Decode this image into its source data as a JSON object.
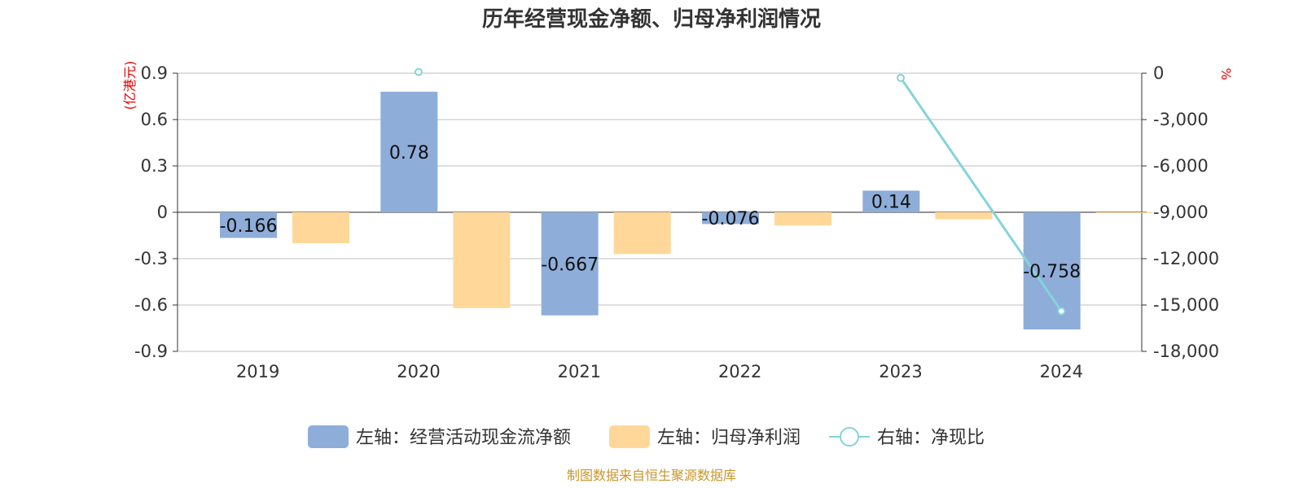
{
  "chart_data": {
    "type": "bar",
    "title": "历年经营现金净额、归母净利润情况",
    "categories": [
      "2019",
      "2020",
      "2021",
      "2022",
      "2023",
      "2024"
    ],
    "left_axis": {
      "unit": "(亿港元)",
      "ylim": [
        -0.9,
        0.9
      ],
      "ticks": [
        "0.9",
        "0.6",
        "0.3",
        "0",
        "-0.3",
        "-0.6",
        "-0.9"
      ],
      "tick_values": [
        0.9,
        0.6,
        0.3,
        0,
        -0.3,
        -0.6,
        -0.9
      ]
    },
    "right_axis": {
      "unit": "%",
      "ylim": [
        -18000,
        0
      ],
      "ticks": [
        "0",
        "-3,000",
        "-6,000",
        "-9,000",
        "-12,000",
        "-15,000",
        "-18,000"
      ],
      "tick_values": [
        0,
        -3000,
        -6000,
        -9000,
        -12000,
        -15000,
        -18000
      ]
    },
    "series": [
      {
        "name": "左轴：经营活动现金流净额",
        "type": "bar",
        "color": "#8eadd9",
        "values": [
          -0.166,
          0.78,
          -0.667,
          -0.076,
          0.14,
          -0.758
        ],
        "labels": [
          "-0.166",
          "0.78",
          "-0.667",
          "-0.076",
          "0.14",
          "-0.758"
        ]
      },
      {
        "name": "左轴：归母净利润",
        "type": "bar",
        "color": "#ffd899",
        "values": [
          -0.2,
          -0.62,
          -0.27,
          -0.085,
          -0.045,
          -0.003
        ]
      },
      {
        "name": "右轴：净现比",
        "type": "line",
        "color": "#86d3d9",
        "values": [
          null,
          80,
          null,
          null,
          -300,
          -15400
        ]
      }
    ],
    "grid": true,
    "legend_position": "bottom"
  },
  "source": "制图数据来自恒生聚源数据库"
}
